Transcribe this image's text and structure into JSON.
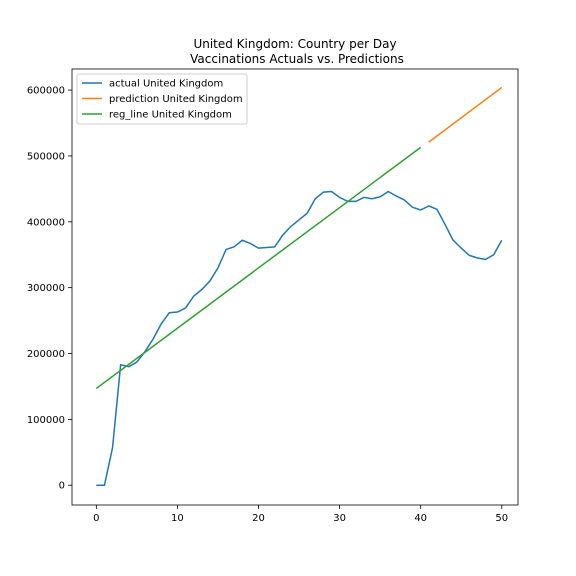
{
  "chart_data": {
    "type": "line",
    "title": "United Kingdom: Country per Day",
    "subtitle": "Vaccinations Actuals vs. Predictions",
    "xlabel": "",
    "ylabel": "",
    "xlim": [
      -3,
      52
    ],
    "ylim": [
      -30000,
      632000
    ],
    "x_ticks": [
      0,
      10,
      20,
      30,
      40,
      50
    ],
    "y_ticks": [
      0,
      100000,
      200000,
      300000,
      400000,
      500000,
      600000
    ],
    "grid": false,
    "legend_position": "top-left",
    "series": [
      {
        "name": "actual United Kingdom",
        "color": "#1f77b4",
        "x": [
          0,
          1,
          2,
          3,
          4,
          5,
          6,
          7,
          8,
          9,
          10,
          11,
          12,
          13,
          14,
          15,
          16,
          17,
          18,
          19,
          20,
          21,
          22,
          23,
          24,
          25,
          26,
          27,
          28,
          29,
          30,
          31,
          32,
          33,
          34,
          35,
          36,
          37,
          38,
          39,
          40,
          41,
          42,
          43,
          44,
          45,
          46,
          47,
          48,
          49,
          50
        ],
        "y": [
          0,
          0,
          57000,
          183000,
          180000,
          187000,
          203000,
          222000,
          245000,
          262000,
          263000,
          269000,
          287000,
          297000,
          310000,
          330000,
          358000,
          362000,
          372000,
          367000,
          360000,
          361000,
          362000,
          380000,
          393000,
          403000,
          413000,
          435000,
          445000,
          446000,
          437000,
          431000,
          431000,
          437000,
          435000,
          438000,
          446000,
          439000,
          433000,
          422000,
          418000,
          424000,
          419000,
          396000,
          372000,
          360000,
          349000,
          345000,
          343000,
          350000,
          372000
        ]
      },
      {
        "name": "prediction United Kingdom",
        "color": "#ff7f0e",
        "x": [
          41,
          50
        ],
        "y": [
          521000,
          604000
        ]
      },
      {
        "name": "reg_line United Kingdom",
        "color": "#2ca02c",
        "x": [
          0,
          40
        ],
        "y": [
          147000,
          513000
        ]
      }
    ]
  }
}
